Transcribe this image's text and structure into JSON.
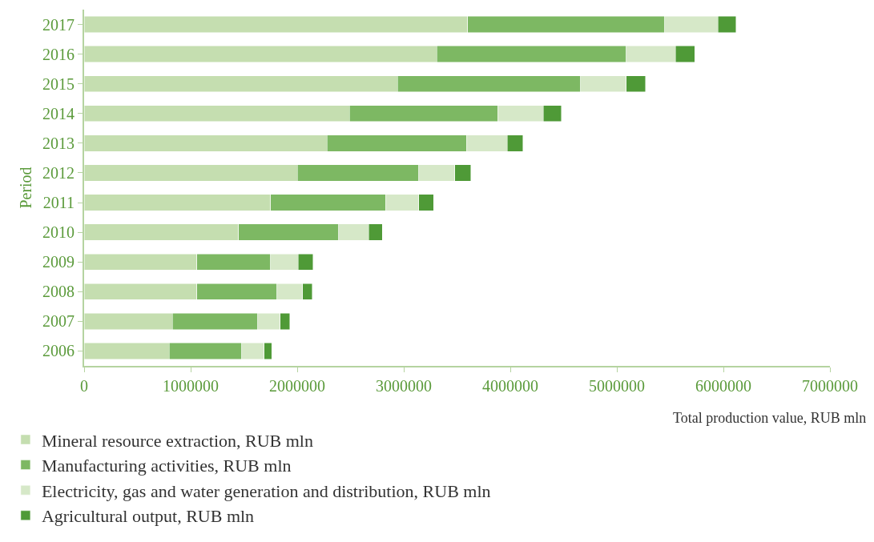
{
  "chart_data": {
    "type": "bar",
    "orientation": "horizontal",
    "stacked": true,
    "xlabel": "Total production value, RUB mln",
    "ylabel": "Period",
    "categories": [
      "2017",
      "2016",
      "2015",
      "2014",
      "2013",
      "2012",
      "2011",
      "2010",
      "2009",
      "2008",
      "2007",
      "2006"
    ],
    "series": [
      {
        "name": "Mineral resource extraction, RUB mln",
        "color": "#c5deb0",
        "values": [
          3600000,
          3310000,
          2940000,
          2490000,
          2280000,
          2000000,
          1750000,
          1450000,
          1060000,
          1060000,
          830000,
          800000
        ]
      },
      {
        "name": "Manufacturing activities, RUB mln",
        "color": "#7db863",
        "values": [
          1850000,
          1780000,
          1720000,
          1390000,
          1310000,
          1140000,
          1080000,
          940000,
          690000,
          750000,
          800000,
          680000
        ]
      },
      {
        "name": "Electricity, gas and water generation and distribution, RUB mln",
        "color": "#d6e8c8",
        "values": [
          500000,
          460000,
          430000,
          430000,
          380000,
          340000,
          310000,
          280000,
          260000,
          240000,
          210000,
          210000
        ]
      },
      {
        "name": "Agricultural output, RUB mln",
        "color": "#4f9a37",
        "values": [
          170000,
          180000,
          180000,
          170000,
          150000,
          150000,
          140000,
          130000,
          140000,
          90000,
          90000,
          70000
        ]
      }
    ],
    "xlim": [
      0,
      7000000
    ],
    "xticks": [
      0,
      1000000,
      2000000,
      3000000,
      4000000,
      5000000,
      6000000,
      7000000
    ],
    "grid": false,
    "legend": "bottom left"
  }
}
